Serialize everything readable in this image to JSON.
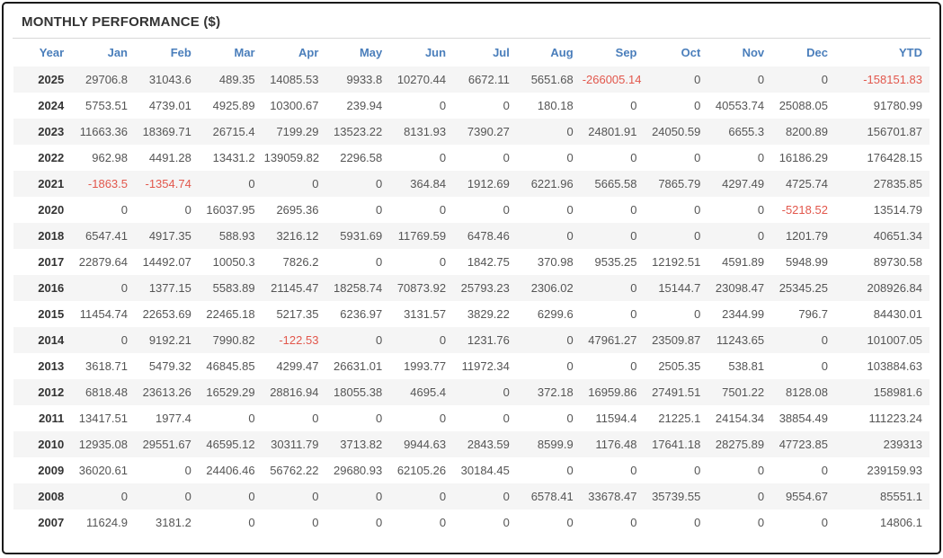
{
  "panel": {
    "title": "MONTHLY PERFORMANCE ($)"
  },
  "colors": {
    "header_text": "#4a7ebb",
    "negative": "#e2574c",
    "row_stripe": "#f5f5f5",
    "title_text": "#333333",
    "cell_text": "#555555",
    "year_text": "#333333",
    "divider": "#d8d8d8",
    "panel_border": "#1a1a1a"
  },
  "chart_data": {
    "type": "table",
    "title": "MONTHLY PERFORMANCE ($)",
    "columns": [
      "Year",
      "Jan",
      "Feb",
      "Mar",
      "Apr",
      "May",
      "Jun",
      "Jul",
      "Aug",
      "Sep",
      "Oct",
      "Nov",
      "Dec",
      "YTD"
    ],
    "rows": [
      {
        "year": "2025",
        "values": [
          "29706.8",
          "31043.6",
          "489.35",
          "14085.53",
          "9933.8",
          "10270.44",
          "6672.11",
          "5651.68",
          "-266005.14",
          "0",
          "0",
          "0",
          "-158151.83"
        ]
      },
      {
        "year": "2024",
        "values": [
          "5753.51",
          "4739.01",
          "4925.89",
          "10300.67",
          "239.94",
          "0",
          "0",
          "180.18",
          "0",
          "0",
          "40553.74",
          "25088.05",
          "91780.99"
        ]
      },
      {
        "year": "2023",
        "values": [
          "11663.36",
          "18369.71",
          "26715.4",
          "7199.29",
          "13523.22",
          "8131.93",
          "7390.27",
          "0",
          "24801.91",
          "24050.59",
          "6655.3",
          "8200.89",
          "156701.87"
        ]
      },
      {
        "year": "2022",
        "values": [
          "962.98",
          "4491.28",
          "13431.2",
          "139059.82",
          "2296.58",
          "0",
          "0",
          "0",
          "0",
          "0",
          "0",
          "16186.29",
          "176428.15"
        ]
      },
      {
        "year": "2021",
        "values": [
          "-1863.5",
          "-1354.74",
          "0",
          "0",
          "0",
          "364.84",
          "1912.69",
          "6221.96",
          "5665.58",
          "7865.79",
          "4297.49",
          "4725.74",
          "27835.85"
        ]
      },
      {
        "year": "2020",
        "values": [
          "0",
          "0",
          "16037.95",
          "2695.36",
          "0",
          "0",
          "0",
          "0",
          "0",
          "0",
          "0",
          "-5218.52",
          "13514.79"
        ]
      },
      {
        "year": "2018",
        "values": [
          "6547.41",
          "4917.35",
          "588.93",
          "3216.12",
          "5931.69",
          "11769.59",
          "6478.46",
          "0",
          "0",
          "0",
          "0",
          "1201.79",
          "40651.34"
        ]
      },
      {
        "year": "2017",
        "values": [
          "22879.64",
          "14492.07",
          "10050.3",
          "7826.2",
          "0",
          "0",
          "1842.75",
          "370.98",
          "9535.25",
          "12192.51",
          "4591.89",
          "5948.99",
          "89730.58"
        ]
      },
      {
        "year": "2016",
        "values": [
          "0",
          "1377.15",
          "5583.89",
          "21145.47",
          "18258.74",
          "70873.92",
          "25793.23",
          "2306.02",
          "0",
          "15144.7",
          "23098.47",
          "25345.25",
          "208926.84"
        ]
      },
      {
        "year": "2015",
        "values": [
          "11454.74",
          "22653.69",
          "22465.18",
          "5217.35",
          "6236.97",
          "3131.57",
          "3829.22",
          "6299.6",
          "0",
          "0",
          "2344.99",
          "796.7",
          "84430.01"
        ]
      },
      {
        "year": "2014",
        "values": [
          "0",
          "9192.21",
          "7990.82",
          "-122.53",
          "0",
          "0",
          "1231.76",
          "0",
          "47961.27",
          "23509.87",
          "11243.65",
          "0",
          "101007.05"
        ]
      },
      {
        "year": "2013",
        "values": [
          "3618.71",
          "5479.32",
          "46845.85",
          "4299.47",
          "26631.01",
          "1993.77",
          "11972.34",
          "0",
          "0",
          "2505.35",
          "538.81",
          "0",
          "103884.63"
        ]
      },
      {
        "year": "2012",
        "values": [
          "6818.48",
          "23613.26",
          "16529.29",
          "28816.94",
          "18055.38",
          "4695.4",
          "0",
          "372.18",
          "16959.86",
          "27491.51",
          "7501.22",
          "8128.08",
          "158981.6"
        ]
      },
      {
        "year": "2011",
        "values": [
          "13417.51",
          "1977.4",
          "0",
          "0",
          "0",
          "0",
          "0",
          "0",
          "11594.4",
          "21225.1",
          "24154.34",
          "38854.49",
          "111223.24"
        ]
      },
      {
        "year": "2010",
        "values": [
          "12935.08",
          "29551.67",
          "46595.12",
          "30311.79",
          "3713.82",
          "9944.63",
          "2843.59",
          "8599.9",
          "1176.48",
          "17641.18",
          "28275.89",
          "47723.85",
          "239313"
        ]
      },
      {
        "year": "2009",
        "values": [
          "36020.61",
          "0",
          "24406.46",
          "56762.22",
          "29680.93",
          "62105.26",
          "30184.45",
          "0",
          "0",
          "0",
          "0",
          "0",
          "239159.93"
        ]
      },
      {
        "year": "2008",
        "values": [
          "0",
          "0",
          "0",
          "0",
          "0",
          "0",
          "0",
          "6578.41",
          "33678.47",
          "35739.55",
          "0",
          "9554.67",
          "85551.1"
        ]
      },
      {
        "year": "2007",
        "values": [
          "11624.9",
          "3181.2",
          "0",
          "0",
          "0",
          "0",
          "0",
          "0",
          "0",
          "0",
          "0",
          "0",
          "14806.1"
        ]
      }
    ]
  }
}
